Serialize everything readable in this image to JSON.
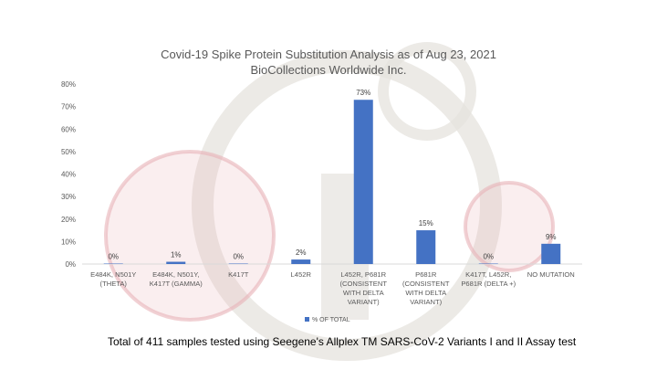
{
  "page": {
    "title_line1": "Covid-19 Spike Protein Substitution Analysis as of Aug 23, 2021",
    "title_line2": "BioCollections Worldwide Inc.",
    "footnote": "Total of 411 samples tested using Seegene's Allplex TM SARS-CoV-2 Variants I and II Assay test"
  },
  "colors": {
    "bar": "#4472C4",
    "axis_text": "#595959",
    "grid": "#D9D9D9",
    "watermark_grey": "#E6E3DE",
    "watermark_pink": "#E7B3B8"
  },
  "chart_data": {
    "type": "bar",
    "categories": [
      [
        "E484K, N501Y",
        "(THETA)"
      ],
      [
        "E484K, N501Y,",
        "K417T (GAMMA)"
      ],
      [
        "K417T"
      ],
      [
        "L452R"
      ],
      [
        "L452R, P681R",
        "(CONSISTENT",
        "WITH DELTA",
        "VARIANT)"
      ],
      [
        "P681R",
        "(CONSISTENT",
        "WITH DELTA",
        "VARIANT)"
      ],
      [
        "K417T, L452R,",
        "P681R (DELTA +)"
      ],
      [
        "NO MUTATION"
      ]
    ],
    "series": [
      {
        "name": "% OF TOTAL",
        "values": [
          0.2,
          1,
          0.2,
          2,
          73,
          15,
          0.2,
          9
        ],
        "labels": [
          "0%",
          "1%",
          "0%",
          "2%",
          "73%",
          "15%",
          "0%",
          "9%"
        ]
      }
    ],
    "yticks": [
      "0%",
      "10%",
      "20%",
      "30%",
      "40%",
      "50%",
      "60%",
      "70%",
      "80%"
    ],
    "ylim": [
      0,
      80
    ],
    "grid": false,
    "legend": "bottom"
  }
}
